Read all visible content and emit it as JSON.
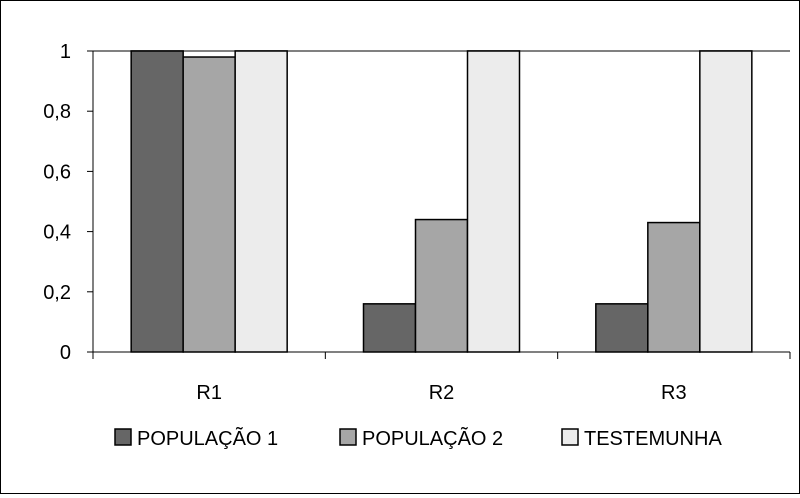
{
  "chart_data": {
    "type": "bar",
    "categories": [
      "R1",
      "R2",
      "R3"
    ],
    "series": [
      {
        "name": "POPULAÇÃO 1",
        "values": [
          1.0,
          0.16,
          0.16
        ],
        "color": "#666666"
      },
      {
        "name": "POPULAÇÃO 2",
        "values": [
          0.98,
          0.44,
          0.43
        ],
        "color": "#a6a6a6"
      },
      {
        "name": "TESTEMUNHA",
        "values": [
          1.0,
          1.0,
          1.0
        ],
        "color": "#ececec"
      }
    ],
    "yticks": [
      "0",
      "0,2",
      "0,4",
      "0,6",
      "0,8",
      "1"
    ],
    "ylim": [
      0,
      1
    ],
    "grid": "top-border-only",
    "legend": "bottom"
  }
}
